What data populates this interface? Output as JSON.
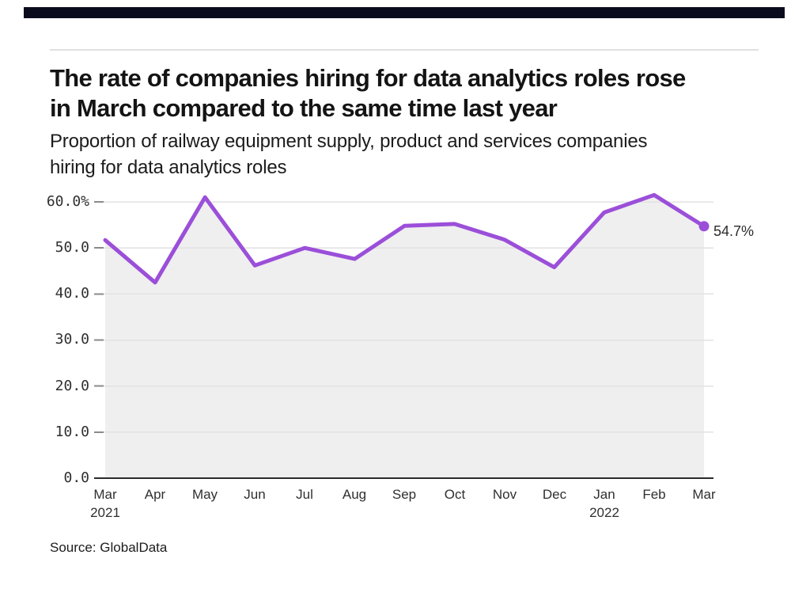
{
  "brand": {
    "top_bar_color": "#0b0b1e"
  },
  "header": {
    "title_lines": [
      "The rate of companies hiring for data analytics roles rose",
      "in March compared to the same time last year"
    ],
    "subtitle_lines": [
      "Proportion of railway equipment supply, product and services companies",
      "hiring for data analytics roles"
    ]
  },
  "chart_data": {
    "type": "line",
    "title": "The rate of companies hiring for data analytics roles rose in March compared to the same time last year",
    "subtitle": "Proportion of railway equipment supply, product and services companies hiring for data analytics roles",
    "categories": [
      "Mar 2021",
      "Apr",
      "May",
      "Jun",
      "Jul",
      "Aug",
      "Sep",
      "Oct",
      "Nov",
      "Dec",
      "Jan 2022",
      "Feb",
      "Mar 2022"
    ],
    "values": [
      51.7,
      42.5,
      61.0,
      46.2,
      50.0,
      47.6,
      54.8,
      55.2,
      51.8,
      45.8,
      57.7,
      61.5,
      54.7
    ],
    "unit": "%",
    "x_tick_labels": [
      "Mar",
      "Apr",
      "May",
      "Jun",
      "Jul",
      "Aug",
      "Sep",
      "Oct",
      "Nov",
      "Dec",
      "Jan",
      "Feb",
      "Mar"
    ],
    "x_year_labels": [
      {
        "index": 0,
        "label": "2021"
      },
      {
        "index": 10,
        "label": "2022"
      }
    ],
    "yticks": [
      {
        "v": 0,
        "label": "0.0"
      },
      {
        "v": 10,
        "label": "10.0"
      },
      {
        "v": 20,
        "label": "20.0"
      },
      {
        "v": 30,
        "label": "30.0"
      },
      {
        "v": 40,
        "label": "40.0"
      },
      {
        "v": 50,
        "label": "50.0"
      },
      {
        "v": 60,
        "label": "60.0%"
      }
    ],
    "ylim": [
      0,
      63
    ],
    "grid": "horizontal",
    "legend": "none",
    "end_label": "54.7%",
    "colors": {
      "line": "#9b4fd9",
      "area": "#efefef",
      "grid": "#e2e2e2",
      "axis": "#2a2a2a",
      "tick": "#8a8a8a"
    }
  },
  "footer": {
    "source": "Source: GlobalData"
  }
}
